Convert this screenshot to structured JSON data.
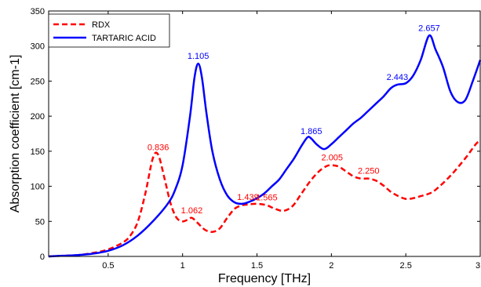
{
  "chart_data": {
    "type": "line",
    "xlabel": "Frequency [THz]",
    "ylabel": "Absorption coefficient [cm-1]",
    "xlim": [
      0.1,
      3.0
    ],
    "ylim": [
      0,
      350
    ],
    "x_ticks": [
      0.5,
      1,
      1.5,
      2,
      2.5,
      3
    ],
    "x_tick_labels": [
      "0.5",
      "1",
      "1.5",
      "2",
      "2.5",
      "3"
    ],
    "y_ticks": [
      0,
      50,
      100,
      150,
      200,
      250,
      300,
      350
    ],
    "y_tick_labels": [
      "0",
      "50",
      "100",
      "150",
      "200",
      "250",
      "300",
      "350"
    ],
    "grid": false,
    "legend_position": "top-left",
    "series": [
      {
        "name": "RDX",
        "color": "#ff0000",
        "line_style": "dashed",
        "x": [
          0.1,
          0.2,
          0.3,
          0.4,
          0.5,
          0.6,
          0.65,
          0.7,
          0.75,
          0.8,
          0.836,
          0.88,
          0.92,
          0.96,
          1.0,
          1.03,
          1.062,
          1.1,
          1.15,
          1.2,
          1.25,
          1.3,
          1.35,
          1.4,
          1.439,
          1.5,
          1.565,
          1.62,
          1.68,
          1.74,
          1.8,
          1.86,
          1.92,
          1.97,
          2.005,
          2.05,
          2.1,
          2.15,
          2.2,
          2.25,
          2.3,
          2.35,
          2.4,
          2.45,
          2.5,
          2.55,
          2.6,
          2.65,
          2.7,
          2.8,
          2.9,
          2.97,
          3.0
        ],
        "y": [
          0,
          1,
          2,
          5,
          10,
          20,
          30,
          50,
          90,
          140,
          145,
          110,
          75,
          55,
          50,
          52,
          55,
          48,
          38,
          35,
          40,
          55,
          68,
          73,
          74,
          75,
          73,
          68,
          65,
          72,
          90,
          108,
          122,
          129,
          130,
          128,
          121,
          114,
          111,
          111,
          108,
          101,
          92,
          86,
          82,
          83,
          86,
          89,
          95,
          115,
          140,
          160,
          165
        ]
      },
      {
        "name": "TARTARIC ACID",
        "color": "#0000ff",
        "line_style": "solid",
        "x": [
          0.1,
          0.2,
          0.3,
          0.4,
          0.5,
          0.6,
          0.7,
          0.8,
          0.9,
          0.95,
          1.0,
          1.05,
          1.08,
          1.105,
          1.13,
          1.16,
          1.2,
          1.25,
          1.3,
          1.35,
          1.4,
          1.45,
          1.5,
          1.55,
          1.6,
          1.65,
          1.7,
          1.75,
          1.8,
          1.84,
          1.865,
          1.9,
          1.95,
          2.0,
          2.05,
          2.1,
          2.15,
          2.2,
          2.25,
          2.3,
          2.35,
          2.4,
          2.443,
          2.5,
          2.55,
          2.6,
          2.657,
          2.7,
          2.75,
          2.8,
          2.85,
          2.9,
          2.95,
          3.0
        ],
        "y": [
          0,
          1,
          2,
          4,
          8,
          16,
          30,
          50,
          75,
          95,
          130,
          200,
          255,
          275,
          255,
          205,
          150,
          110,
          87,
          77,
          75,
          78,
          83,
          90,
          100,
          110,
          125,
          140,
          158,
          170,
          168,
          160,
          153,
          160,
          170,
          180,
          190,
          198,
          208,
          218,
          228,
          240,
          245,
          247,
          258,
          280,
          315,
          295,
          270,
          235,
          220,
          223,
          250,
          280
        ]
      }
    ],
    "annotations": [
      {
        "text": "0.836",
        "series": "RDX",
        "x": 0.836,
        "y": 145
      },
      {
        "text": "1.062",
        "series": "RDX",
        "x": 1.062,
        "y": 55
      },
      {
        "text": "1.439",
        "series": "RDX",
        "x": 1.439,
        "y": 74
      },
      {
        "text": "1.565",
        "series": "RDX",
        "x": 1.565,
        "y": 73
      },
      {
        "text": "2.005",
        "series": "RDX",
        "x": 2.005,
        "y": 130
      },
      {
        "text": "2.250",
        "series": "RDX",
        "x": 2.25,
        "y": 111
      },
      {
        "text": "1.105",
        "series": "TARTARIC ACID",
        "x": 1.105,
        "y": 275
      },
      {
        "text": "1.865",
        "series": "TARTARIC ACID",
        "x": 1.865,
        "y": 168
      },
      {
        "text": "2.443",
        "series": "TARTARIC ACID",
        "x": 2.443,
        "y": 245
      },
      {
        "text": "2.657",
        "series": "TARTARIC ACID",
        "x": 2.657,
        "y": 315
      }
    ]
  }
}
